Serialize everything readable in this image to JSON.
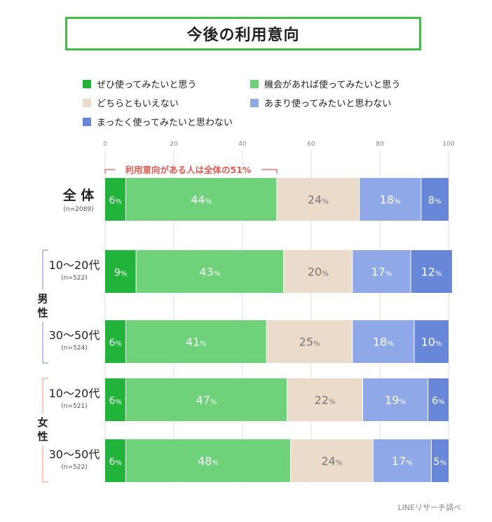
{
  "title": "今後の利用意向",
  "legend": [
    {
      "label": "ぜひ使ってみたいと思う",
      "color": "#22b33b"
    },
    {
      "label": "機会があれば使ってみたいと思う",
      "color": "#6fd27a"
    },
    {
      "label": "どちらともいえない",
      "color": "#eadbcb"
    },
    {
      "label": "あまり使ってみたいと思わない",
      "color": "#8ea8e8"
    },
    {
      "label": "まったく使ってみたいと思わない",
      "color": "#6987d9"
    }
  ],
  "source": "LINEリサーチ調べ",
  "chart_data": {
    "type": "bar",
    "orientation": "horizontal",
    "stacked": true,
    "xlim": [
      0,
      100
    ],
    "x_ticks": [
      "0",
      "20",
      "40",
      "60",
      "80",
      "100"
    ],
    "unit_label": "%",
    "annotation": "利用意向がある人は全体の51%",
    "groups": [
      {
        "label": "",
        "color": "",
        "categories": [
          "全 体"
        ]
      },
      {
        "label": "男性",
        "color": "#8aa0d8",
        "categories": [
          "10〜20代",
          "30〜50代"
        ]
      },
      {
        "label": "女性",
        "color": "#f2a98a",
        "categories": [
          "10〜20代",
          "30〜50代"
        ]
      }
    ],
    "categories": [
      "全 体",
      "10〜20代",
      "30〜50代",
      "10〜20代",
      "30〜50代"
    ],
    "sample_sizes": [
      "(n=2089)",
      "(n=522)",
      "(n=524)",
      "(n=521)",
      "(n=522)"
    ],
    "series": [
      {
        "name": "ぜひ使ってみたいと思う",
        "color": "#22b33b",
        "text_color": "#ffffff",
        "values": [
          6,
          9,
          6,
          6,
          6
        ]
      },
      {
        "name": "機会があれば使ってみたいと思う",
        "color": "#6fd27a",
        "text_color": "#ffffff",
        "values": [
          44,
          43,
          41,
          47,
          48
        ]
      },
      {
        "name": "どちらともいえない",
        "color": "#eadbcb",
        "text_color": "#777777",
        "values": [
          24,
          20,
          25,
          22,
          24
        ]
      },
      {
        "name": "あまり使ってみたいと思わない",
        "color": "#8ea8e8",
        "text_color": "#ffffff",
        "values": [
          18,
          17,
          18,
          19,
          17
        ]
      },
      {
        "name": "まったく使ってみたいと思わない",
        "color": "#6987d9",
        "text_color": "#ffffff",
        "values": [
          8,
          12,
          10,
          6,
          5
        ]
      }
    ]
  }
}
